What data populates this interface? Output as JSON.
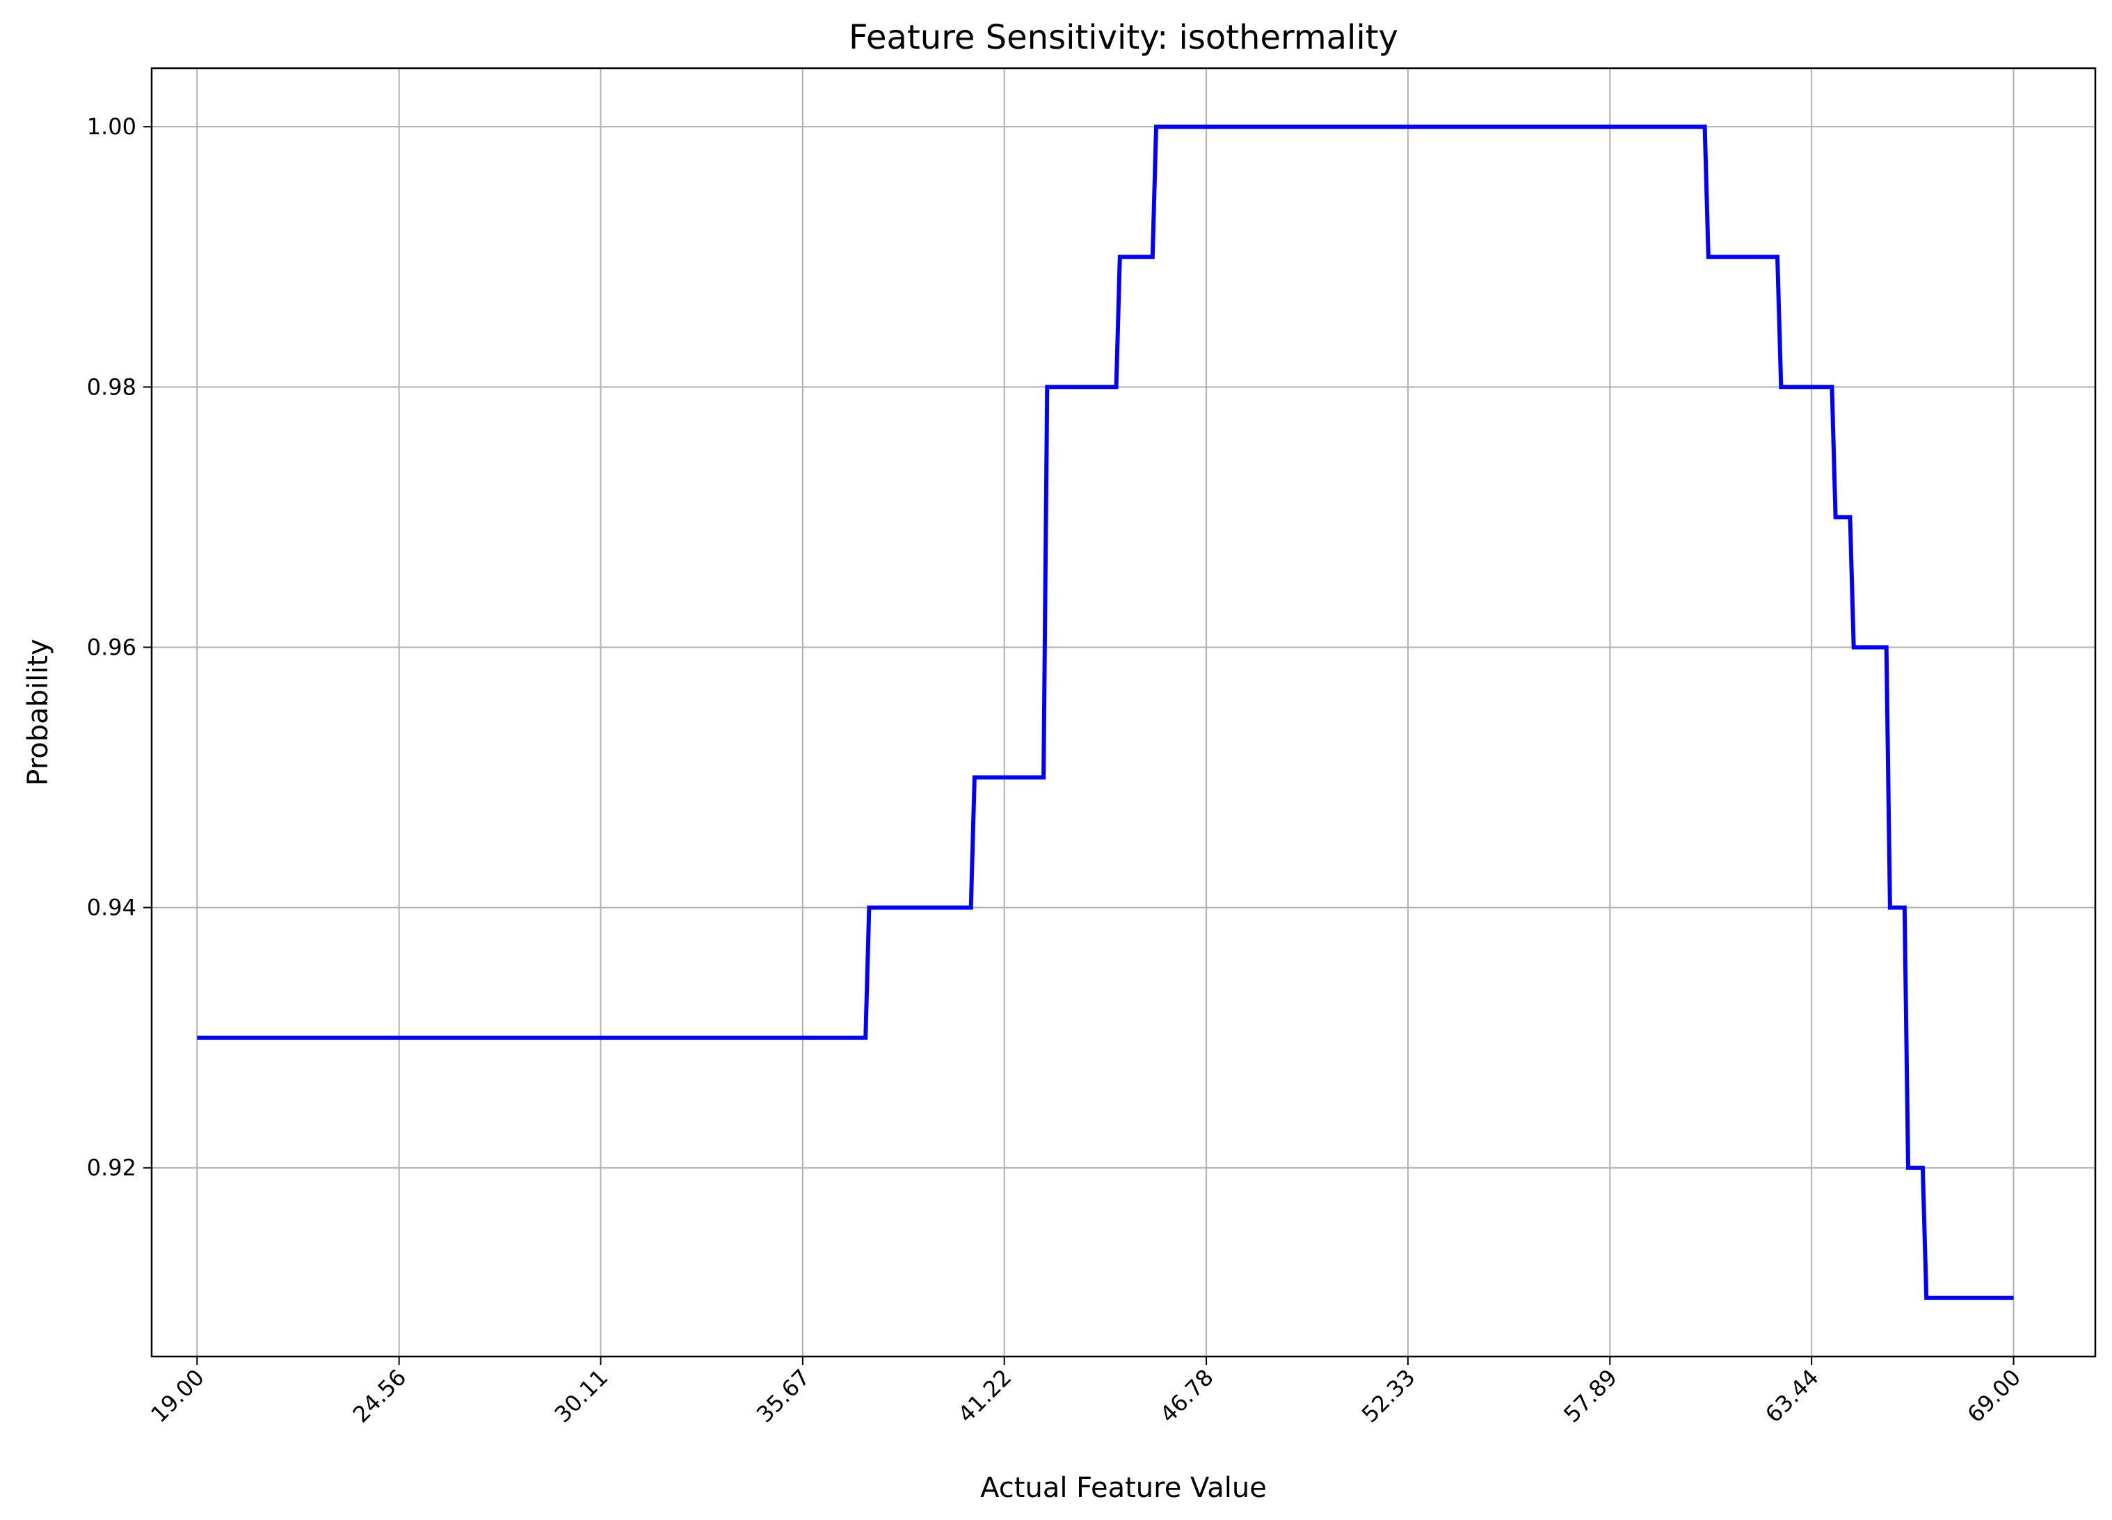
{
  "chart_data": {
    "type": "line",
    "title": "Feature Sensitivity: isothermality",
    "xlabel": "Actual Feature Value",
    "ylabel": "Probability",
    "xlim": [
      17.75,
      71.25
    ],
    "ylim": [
      0.9055,
      1.0045
    ],
    "xticks": [
      19.0,
      24.56,
      30.11,
      35.67,
      41.22,
      46.78,
      52.33,
      57.89,
      63.44,
      69.0
    ],
    "xtick_labels": [
      "19.00",
      "24.56",
      "30.11",
      "35.67",
      "41.22",
      "46.78",
      "52.33",
      "57.89",
      "63.44",
      "69.00"
    ],
    "yticks": [
      0.92,
      0.94,
      0.96,
      0.98,
      1.0
    ],
    "ytick_labels": [
      "0.92",
      "0.94",
      "0.96",
      "0.98",
      "1.00"
    ],
    "grid": true,
    "series": [
      {
        "color": "#0000ff",
        "x": [
          19.0,
          37.4,
          37.5,
          40.3,
          40.4,
          42.3,
          42.4,
          44.3,
          44.4,
          45.3,
          45.4,
          60.5,
          60.6,
          62.5,
          62.6,
          64.0,
          64.1,
          64.5,
          64.6,
          65.5,
          65.6,
          66.0,
          66.1,
          66.5,
          66.6,
          69.0
        ],
        "y": [
          0.93,
          0.93,
          0.94,
          0.94,
          0.95,
          0.95,
          0.98,
          0.98,
          0.99,
          0.99,
          1.0,
          1.0,
          0.99,
          0.99,
          0.98,
          0.98,
          0.97,
          0.97,
          0.96,
          0.96,
          0.94,
          0.94,
          0.92,
          0.92,
          0.91,
          0.91
        ]
      }
    ]
  }
}
